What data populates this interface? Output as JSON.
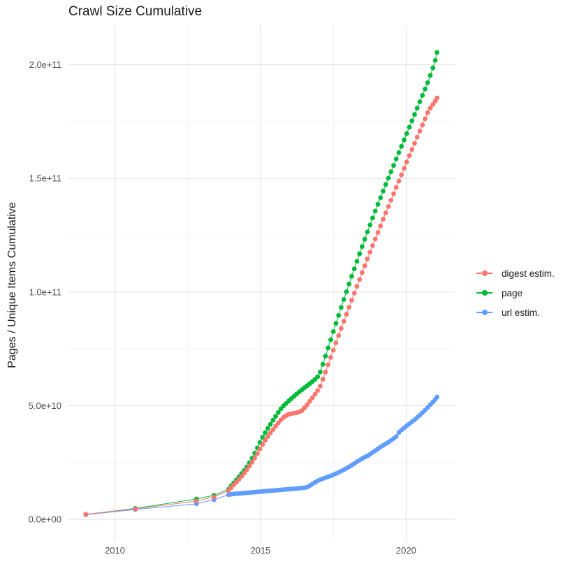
{
  "chart_data": {
    "type": "line",
    "title": "Crawl Size Cumulative",
    "xlabel": "",
    "ylabel": "Pages / Unique Items Cumulative",
    "legend_position": "right",
    "grid": true,
    "y_unit": "1e9 (values below are billions; axis labels shown in scientific notation)",
    "colors": {
      "background": "#FFFFFF",
      "grid_major": "#E5E5E5",
      "grid_minor": "#F2F2F2",
      "tick_text": "#4D4D4D",
      "title_text": "#1A1A1A"
    },
    "x_axis": {
      "range": [
        2008.38,
        2021.67
      ],
      "ticks": [
        {
          "value": 2010,
          "label": "2010"
        },
        {
          "value": 2015,
          "label": "2015"
        },
        {
          "value": 2020,
          "label": "2020"
        }
      ],
      "minor": [
        2012.5,
        2017.5
      ]
    },
    "y_axis": {
      "range": [
        -10.15,
        217.4
      ],
      "ticks": [
        {
          "value": 0,
          "label": "0.0e+00"
        },
        {
          "value": 50,
          "label": "5.0e+10"
        },
        {
          "value": 100,
          "label": "1.0e+11"
        },
        {
          "value": 150,
          "label": "1.5e+11"
        },
        {
          "value": 200,
          "label": "2.0e+11"
        }
      ],
      "minor": [
        25,
        75,
        125,
        175
      ]
    },
    "draw_order": [
      1,
      2,
      0
    ],
    "series": [
      {
        "name": "digest estim.",
        "color": "#F8766D",
        "points": [
          [
            2009.0,
            2.2
          ],
          [
            2010.7,
            4.6
          ],
          [
            2012.8,
            8.0
          ],
          [
            2013.4,
            9.8
          ],
          [
            2013.9,
            12.6
          ],
          [
            2013.99,
            13.9
          ],
          [
            2014.08,
            15.1
          ],
          [
            2014.17,
            16.3
          ],
          [
            2014.26,
            17.6
          ],
          [
            2014.35,
            18.9
          ],
          [
            2014.44,
            20.3
          ],
          [
            2014.53,
            21.8
          ],
          [
            2014.62,
            23.4
          ],
          [
            2014.71,
            25.1
          ],
          [
            2014.8,
            26.9
          ],
          [
            2014.89,
            28.9
          ],
          [
            2014.98,
            30.9
          ],
          [
            2015.07,
            32.9
          ],
          [
            2015.16,
            34.7
          ],
          [
            2015.25,
            36.4
          ],
          [
            2015.34,
            38.0
          ],
          [
            2015.43,
            39.5
          ],
          [
            2015.52,
            41.0
          ],
          [
            2015.61,
            42.4
          ],
          [
            2015.7,
            43.7
          ],
          [
            2015.79,
            44.8
          ],
          [
            2015.88,
            45.6
          ],
          [
            2015.97,
            46.2
          ],
          [
            2016.06,
            46.5
          ],
          [
            2016.15,
            46.7
          ],
          [
            2016.24,
            46.9
          ],
          [
            2016.33,
            47.2
          ],
          [
            2016.42,
            47.8
          ],
          [
            2016.51,
            49.0
          ],
          [
            2016.6,
            50.4
          ],
          [
            2016.69,
            51.9
          ],
          [
            2016.78,
            53.4
          ],
          [
            2016.87,
            55.0
          ],
          [
            2016.96,
            56.6
          ],
          [
            2017.05,
            58.6
          ],
          [
            2017.14,
            61.6
          ],
          [
            2017.23,
            64.8
          ],
          [
            2017.32,
            68.0
          ],
          [
            2017.41,
            71.2
          ],
          [
            2017.5,
            74.4
          ],
          [
            2017.59,
            77.6
          ],
          [
            2017.68,
            80.8
          ],
          [
            2017.77,
            84.0
          ],
          [
            2017.86,
            87.1
          ],
          [
            2017.95,
            90.2
          ],
          [
            2018.04,
            93.3
          ],
          [
            2018.13,
            96.4
          ],
          [
            2018.22,
            99.5
          ],
          [
            2018.31,
            102.5
          ],
          [
            2018.4,
            105.5
          ],
          [
            2018.49,
            108.5
          ],
          [
            2018.58,
            111.5
          ],
          [
            2018.67,
            114.5
          ],
          [
            2018.76,
            117.5
          ],
          [
            2018.85,
            120.4
          ],
          [
            2018.94,
            123.3
          ],
          [
            2019.03,
            126.2
          ],
          [
            2019.12,
            129.1
          ],
          [
            2019.21,
            132.0
          ],
          [
            2019.3,
            134.8
          ],
          [
            2019.39,
            137.6
          ],
          [
            2019.48,
            140.4
          ],
          [
            2019.57,
            143.2
          ],
          [
            2019.66,
            146.0
          ],
          [
            2019.75,
            148.8
          ],
          [
            2019.84,
            151.6
          ],
          [
            2019.93,
            154.4
          ],
          [
            2020.02,
            157.2
          ],
          [
            2020.11,
            160.0
          ],
          [
            2020.2,
            162.7
          ],
          [
            2020.29,
            165.4
          ],
          [
            2020.38,
            168.1
          ],
          [
            2020.47,
            170.8
          ],
          [
            2020.56,
            173.5
          ],
          [
            2020.65,
            176.2
          ],
          [
            2020.74,
            178.9
          ],
          [
            2020.83,
            180.9
          ],
          [
            2020.92,
            182.5
          ],
          [
            2021.0,
            184.0
          ],
          [
            2021.06,
            185.4
          ]
        ]
      },
      {
        "name": "page",
        "color": "#00BA38",
        "points": [
          [
            2009.0,
            2.1
          ],
          [
            2010.7,
            4.8
          ],
          [
            2012.8,
            8.9
          ],
          [
            2013.4,
            10.5
          ],
          [
            2013.9,
            13.2
          ],
          [
            2013.99,
            14.7
          ],
          [
            2014.08,
            16.0
          ],
          [
            2014.17,
            17.3
          ],
          [
            2014.26,
            18.7
          ],
          [
            2014.35,
            20.1
          ],
          [
            2014.44,
            21.5
          ],
          [
            2014.53,
            23.1
          ],
          [
            2014.62,
            24.9
          ],
          [
            2014.71,
            26.9
          ],
          [
            2014.8,
            29.1
          ],
          [
            2014.89,
            31.4
          ],
          [
            2014.98,
            33.8
          ],
          [
            2015.07,
            36.1
          ],
          [
            2015.16,
            38.1
          ],
          [
            2015.25,
            40.0
          ],
          [
            2015.34,
            41.8
          ],
          [
            2015.43,
            43.6
          ],
          [
            2015.52,
            45.3
          ],
          [
            2015.61,
            47.0
          ],
          [
            2015.7,
            48.6
          ],
          [
            2015.79,
            49.9
          ],
          [
            2015.88,
            51.0
          ],
          [
            2015.97,
            52.1
          ],
          [
            2016.06,
            53.1
          ],
          [
            2016.15,
            54.1
          ],
          [
            2016.24,
            55.1
          ],
          [
            2016.33,
            56.1
          ],
          [
            2016.42,
            57.0
          ],
          [
            2016.51,
            57.9
          ],
          [
            2016.6,
            58.8
          ],
          [
            2016.69,
            59.7
          ],
          [
            2016.78,
            60.6
          ],
          [
            2016.87,
            61.6
          ],
          [
            2016.96,
            62.7
          ],
          [
            2017.05,
            64.8
          ],
          [
            2017.14,
            68.2
          ],
          [
            2017.23,
            71.8
          ],
          [
            2017.32,
            75.4
          ],
          [
            2017.41,
            79.0
          ],
          [
            2017.5,
            82.6
          ],
          [
            2017.59,
            86.2
          ],
          [
            2017.68,
            89.7
          ],
          [
            2017.77,
            93.2
          ],
          [
            2017.86,
            96.7
          ],
          [
            2017.95,
            100.1
          ],
          [
            2018.04,
            103.5
          ],
          [
            2018.13,
            106.9
          ],
          [
            2018.22,
            110.2
          ],
          [
            2018.31,
            113.5
          ],
          [
            2018.4,
            116.8
          ],
          [
            2018.49,
            120.0
          ],
          [
            2018.58,
            123.2
          ],
          [
            2018.67,
            126.4
          ],
          [
            2018.76,
            129.5
          ],
          [
            2018.85,
            132.6
          ],
          [
            2018.94,
            135.6
          ],
          [
            2019.03,
            138.6
          ],
          [
            2019.12,
            141.5
          ],
          [
            2019.21,
            144.4
          ],
          [
            2019.3,
            147.3
          ],
          [
            2019.39,
            150.1
          ],
          [
            2019.48,
            152.9
          ],
          [
            2019.57,
            155.7
          ],
          [
            2019.66,
            158.5
          ],
          [
            2019.75,
            161.3
          ],
          [
            2019.84,
            164.1
          ],
          [
            2019.93,
            166.9
          ],
          [
            2020.02,
            169.7
          ],
          [
            2020.11,
            172.5
          ],
          [
            2020.2,
            175.3
          ],
          [
            2020.29,
            178.1
          ],
          [
            2020.38,
            180.9
          ],
          [
            2020.47,
            183.7
          ],
          [
            2020.56,
            186.5
          ],
          [
            2020.65,
            189.3
          ],
          [
            2020.74,
            192.1
          ],
          [
            2020.83,
            195.3
          ],
          [
            2020.92,
            198.6
          ],
          [
            2021.0,
            201.9
          ],
          [
            2021.06,
            205.4
          ]
        ]
      },
      {
        "name": "url estim.",
        "color": "#619CFF",
        "points": [
          [
            2009.0,
            2.0
          ],
          [
            2010.7,
            4.3
          ],
          [
            2012.8,
            6.8
          ],
          [
            2013.4,
            8.6
          ],
          [
            2013.9,
            10.8
          ],
          [
            2013.99,
            11.0
          ],
          [
            2014.08,
            11.15
          ],
          [
            2014.17,
            11.25
          ],
          [
            2014.26,
            11.35
          ],
          [
            2014.35,
            11.45
          ],
          [
            2014.44,
            11.55
          ],
          [
            2014.53,
            11.65
          ],
          [
            2014.62,
            11.75
          ],
          [
            2014.71,
            11.85
          ],
          [
            2014.8,
            11.95
          ],
          [
            2014.89,
            12.05
          ],
          [
            2014.98,
            12.15
          ],
          [
            2015.07,
            12.25
          ],
          [
            2015.16,
            12.35
          ],
          [
            2015.25,
            12.45
          ],
          [
            2015.34,
            12.55
          ],
          [
            2015.43,
            12.65
          ],
          [
            2015.52,
            12.75
          ],
          [
            2015.61,
            12.85
          ],
          [
            2015.7,
            12.95
          ],
          [
            2015.79,
            13.05
          ],
          [
            2015.88,
            13.15
          ],
          [
            2015.97,
            13.25
          ],
          [
            2016.06,
            13.35
          ],
          [
            2016.15,
            13.45
          ],
          [
            2016.24,
            13.55
          ],
          [
            2016.33,
            13.65
          ],
          [
            2016.42,
            13.78
          ],
          [
            2016.51,
            13.9
          ],
          [
            2016.6,
            14.1
          ],
          [
            2016.69,
            14.8
          ],
          [
            2016.78,
            15.5
          ],
          [
            2016.87,
            16.2
          ],
          [
            2016.96,
            16.9
          ],
          [
            2017.05,
            17.4
          ],
          [
            2017.14,
            17.9
          ],
          [
            2017.23,
            18.3
          ],
          [
            2017.32,
            18.7
          ],
          [
            2017.41,
            19.1
          ],
          [
            2017.5,
            19.6
          ],
          [
            2017.59,
            20.1
          ],
          [
            2017.68,
            20.6
          ],
          [
            2017.77,
            21.2
          ],
          [
            2017.86,
            21.8
          ],
          [
            2017.95,
            22.4
          ],
          [
            2018.04,
            23.1
          ],
          [
            2018.13,
            23.8
          ],
          [
            2018.22,
            24.5
          ],
          [
            2018.31,
            25.3
          ],
          [
            2018.4,
            26.0
          ],
          [
            2018.49,
            26.7
          ],
          [
            2018.58,
            27.3
          ],
          [
            2018.67,
            27.9
          ],
          [
            2018.76,
            28.6
          ],
          [
            2018.85,
            29.4
          ],
          [
            2018.94,
            30.2
          ],
          [
            2019.03,
            31.0
          ],
          [
            2019.12,
            31.8
          ],
          [
            2019.21,
            32.5
          ],
          [
            2019.3,
            33.2
          ],
          [
            2019.39,
            33.9
          ],
          [
            2019.48,
            34.7
          ],
          [
            2019.57,
            35.5
          ],
          [
            2019.66,
            36.4
          ],
          [
            2019.75,
            38.2
          ],
          [
            2019.84,
            39.3
          ],
          [
            2019.93,
            40.2
          ],
          [
            2020.02,
            41.1
          ],
          [
            2020.11,
            42.0
          ],
          [
            2020.2,
            42.9
          ],
          [
            2020.29,
            43.8
          ],
          [
            2020.38,
            44.8
          ],
          [
            2020.47,
            45.8
          ],
          [
            2020.56,
            46.9
          ],
          [
            2020.65,
            48.0
          ],
          [
            2020.74,
            49.2
          ],
          [
            2020.83,
            50.4
          ],
          [
            2020.92,
            51.6
          ],
          [
            2021.0,
            52.7
          ],
          [
            2021.06,
            53.8
          ]
        ]
      }
    ]
  }
}
